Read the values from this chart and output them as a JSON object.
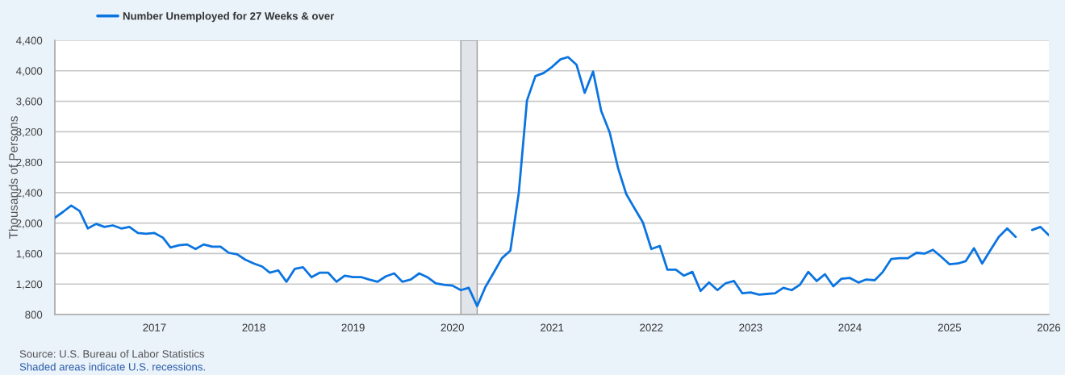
{
  "chart_data": {
    "type": "line",
    "ylabel": "Thousands of Persons",
    "x": [
      "2016-01",
      "2016-02",
      "2016-03",
      "2016-04",
      "2016-05",
      "2016-06",
      "2016-07",
      "2016-08",
      "2016-09",
      "2016-10",
      "2016-11",
      "2016-12",
      "2017-01",
      "2017-02",
      "2017-03",
      "2017-04",
      "2017-05",
      "2017-06",
      "2017-07",
      "2017-08",
      "2017-09",
      "2017-10",
      "2017-11",
      "2017-12",
      "2018-01",
      "2018-02",
      "2018-03",
      "2018-04",
      "2018-05",
      "2018-06",
      "2018-07",
      "2018-08",
      "2018-09",
      "2018-10",
      "2018-11",
      "2018-12",
      "2019-01",
      "2019-02",
      "2019-03",
      "2019-04",
      "2019-05",
      "2019-06",
      "2019-07",
      "2019-08",
      "2019-09",
      "2019-10",
      "2019-11",
      "2019-12",
      "2020-01",
      "2020-02",
      "2020-03",
      "2020-04",
      "2020-05",
      "2020-06",
      "2020-07",
      "2020-08",
      "2020-09",
      "2020-10",
      "2020-11",
      "2020-12",
      "2021-01",
      "2021-02",
      "2021-03",
      "2021-04",
      "2021-05",
      "2021-06",
      "2021-07",
      "2021-08",
      "2021-09",
      "2021-10",
      "2021-11",
      "2021-12",
      "2022-01",
      "2022-02",
      "2022-03",
      "2022-04",
      "2022-05",
      "2022-06",
      "2022-07",
      "2022-08",
      "2022-09",
      "2022-10",
      "2022-11",
      "2022-12",
      "2023-01",
      "2023-02",
      "2023-03",
      "2023-04",
      "2023-05",
      "2023-06",
      "2023-07",
      "2023-08",
      "2023-09",
      "2023-10",
      "2023-11",
      "2023-12",
      "2024-01",
      "2024-02",
      "2024-03",
      "2024-04",
      "2024-05",
      "2024-06",
      "2024-07",
      "2024-08",
      "2024-09",
      "2024-10",
      "2024-11",
      "2024-12",
      "2025-01",
      "2025-02",
      "2025-03",
      "2025-04",
      "2025-05",
      "2025-06",
      "2025-07",
      "2025-08",
      "2025-09",
      "2025-10",
      "2025-11",
      "2025-12",
      "2026-01"
    ],
    "series": [
      {
        "name": "Number Unemployed for 27 Weeks & over",
        "color": "#0a74e0",
        "values": [
          2070,
          2150,
          2230,
          2160,
          1930,
          1990,
          1950,
          1970,
          1930,
          1950,
          1870,
          1860,
          1870,
          1810,
          1680,
          1710,
          1720,
          1660,
          1720,
          1690,
          1690,
          1610,
          1590,
          1520,
          1470,
          1430,
          1350,
          1380,
          1230,
          1400,
          1420,
          1290,
          1350,
          1350,
          1230,
          1310,
          1290,
          1290,
          1260,
          1230,
          1300,
          1340,
          1230,
          1260,
          1340,
          1290,
          1210,
          1190,
          1180,
          1120,
          1150,
          910,
          1160,
          1350,
          1540,
          1640,
          2400,
          3610,
          3930,
          3970,
          4050,
          4150,
          4180,
          4080,
          3710,
          3990,
          3470,
          3190,
          2720,
          2380,
          2190,
          2010,
          1660,
          1700,
          1390,
          1390,
          1310,
          1360,
          1110,
          1220,
          1120,
          1210,
          1240,
          1080,
          1090,
          1060,
          1070,
          1080,
          1150,
          1120,
          1190,
          1360,
          1240,
          1330,
          1170,
          1270,
          1280,
          1220,
          1260,
          1250,
          1360,
          1530,
          1540,
          1540,
          1610,
          1600,
          1650,
          1560,
          1460,
          1470,
          1500,
          1670,
          1470,
          1650,
          1820,
          1930,
          1820,
          null,
          1910,
          1950,
          1840
        ]
      }
    ],
    "xlim": [
      "2016-01",
      "2026-01"
    ],
    "xticks": [
      "2017",
      "2018",
      "2019",
      "2020",
      "2021",
      "2022",
      "2023",
      "2024",
      "2025",
      "2026"
    ],
    "ylim": [
      800,
      4400
    ],
    "yticks": [
      800,
      {
        "value": 1200,
        "label": "1,200"
      },
      {
        "value": 1600,
        "label": "1,600"
      },
      {
        "value": 2000,
        "label": "2,000"
      },
      {
        "value": 2400,
        "label": "2,400"
      },
      {
        "value": 2800,
        "label": "2,800"
      },
      {
        "value": 3200,
        "label": "3,200"
      },
      {
        "value": 3600,
        "label": "3,600"
      },
      {
        "value": 4000,
        "label": "4,000"
      },
      {
        "value": 4400,
        "label": "4,400"
      }
    ],
    "grid": "y",
    "legend": "top left",
    "line_style": "solid",
    "bands": [
      {
        "axis": "x",
        "from": "2020-02",
        "to": "2020-04",
        "color": "#e1e5ea"
      }
    ],
    "annotations": [
      "Source: U.S. Bureau of Labor Statistics",
      "Shaded areas indicate U.S. recessions."
    ]
  }
}
